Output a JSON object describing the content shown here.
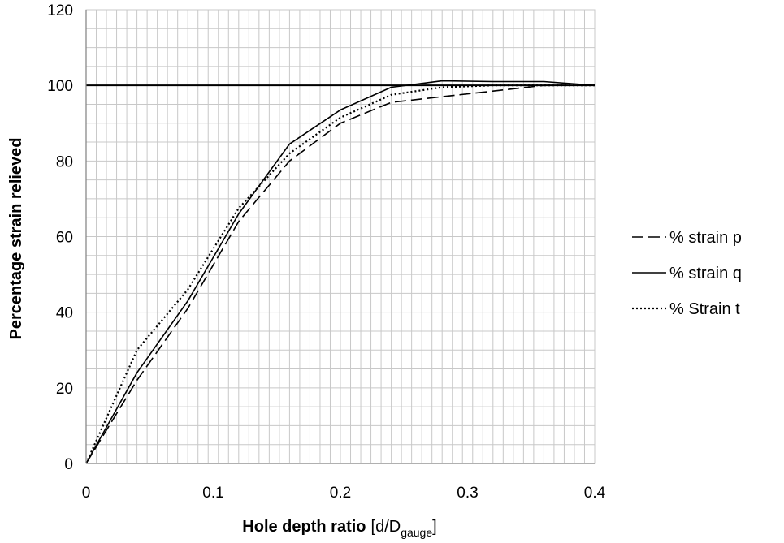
{
  "chart_data": {
    "type": "line",
    "xlabel": "Hole depth ratio",
    "xlabel_suffix": "[d/D",
    "xlabel_subscript": "gauge",
    "xlabel_close": "]",
    "ylabel": "Percentage strain relieved",
    "xlim": [
      0,
      0.4
    ],
    "ylim": [
      0,
      120
    ],
    "x_ticks": [
      "0",
      "0.1",
      "0.2",
      "0.3",
      "0.4"
    ],
    "y_ticks": [
      "0",
      "20",
      "40",
      "60",
      "80",
      "100",
      "120"
    ],
    "grid": true,
    "legend_position": "right",
    "reference_line": {
      "y": 100
    },
    "series": [
      {
        "name": "% strain p",
        "style": "dashed",
        "color": "#000000",
        "points": [
          [
            0,
            0
          ],
          [
            0.04,
            22
          ],
          [
            0.08,
            41
          ],
          [
            0.12,
            64
          ],
          [
            0.16,
            80
          ],
          [
            0.2,
            90
          ],
          [
            0.24,
            95.5
          ],
          [
            0.28,
            97
          ],
          [
            0.32,
            98.5
          ],
          [
            0.36,
            100
          ],
          [
            0.4,
            100
          ]
        ]
      },
      {
        "name": "% strain q",
        "style": "solid",
        "color": "#000000",
        "points": [
          [
            0,
            0
          ],
          [
            0.04,
            24
          ],
          [
            0.08,
            43
          ],
          [
            0.12,
            66
          ],
          [
            0.16,
            84.5
          ],
          [
            0.2,
            93.5
          ],
          [
            0.24,
            99.5
          ],
          [
            0.28,
            101.2
          ],
          [
            0.32,
            101
          ],
          [
            0.36,
            101
          ],
          [
            0.4,
            100
          ]
        ]
      },
      {
        "name": "% Strain t",
        "style": "dotted",
        "color": "#000000",
        "points": [
          [
            0,
            0
          ],
          [
            0.04,
            30
          ],
          [
            0.08,
            46
          ],
          [
            0.12,
            67.5
          ],
          [
            0.16,
            82
          ],
          [
            0.2,
            91.5
          ],
          [
            0.24,
            97.5
          ],
          [
            0.28,
            99.5
          ],
          [
            0.32,
            100
          ],
          [
            0.36,
            100
          ],
          [
            0.4,
            100
          ]
        ]
      }
    ]
  }
}
